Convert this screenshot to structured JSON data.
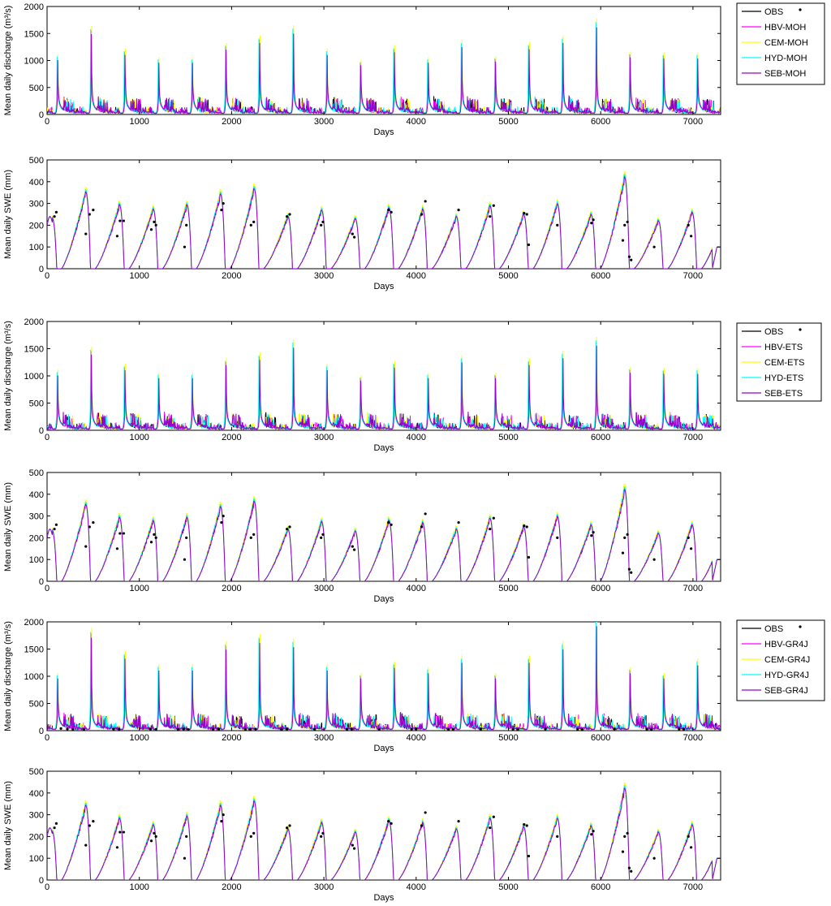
{
  "colors": {
    "OBS": "#000000",
    "HBV": "#ff00ff",
    "CEM": "#ffff00",
    "HYD": "#00ffff",
    "SEB": "#9900cc"
  },
  "chart_data": [
    {
      "type": "line",
      "xlabel": "Days",
      "ylabel": "Mean daily discharge (m³/s)",
      "xlim": [
        0,
        7300
      ],
      "ylim": [
        0,
        2000
      ],
      "xticks": [
        0,
        1000,
        2000,
        3000,
        4000,
        5000,
        6000,
        7000
      ],
      "yticks": [
        0,
        500,
        1000,
        1500,
        2000
      ],
      "legend_position": "outside-top-right",
      "series": [
        {
          "name": "OBS",
          "color": "#000000",
          "kind": "line-obs"
        },
        {
          "name": "HBV-MOH",
          "color": "#ff00ff",
          "kind": "line"
        },
        {
          "name": "CEM-MOH",
          "color": "#ffff00",
          "kind": "line"
        },
        {
          "name": "HYD-MOH",
          "color": "#00ffff",
          "kind": "line"
        },
        {
          "name": "SEB-MOH",
          "color": "#9900cc",
          "kind": "line"
        }
      ],
      "peaks": [
        1050,
        1550,
        1150,
        1000,
        1000,
        1250,
        1380,
        1560,
        1150,
        950,
        1200,
        1000,
        1300,
        1020,
        1260,
        1380,
        1680,
        1100,
        1080,
        1080
      ],
      "spike_peaks": [],
      "obs_points": []
    },
    {
      "type": "line",
      "xlabel": "Days",
      "ylabel": "Mean daily SWE (mm)",
      "xlim": [
        0,
        7300
      ],
      "ylim": [
        0,
        500
      ],
      "xticks": [
        0,
        1000,
        2000,
        3000,
        4000,
        5000,
        6000,
        7000
      ],
      "yticks": [
        0,
        100,
        200,
        300,
        400,
        500
      ],
      "series": [
        {
          "name": "HBV",
          "color": "#ff00ff"
        },
        {
          "name": "CEM",
          "color": "#ffff00"
        },
        {
          "name": "HYD",
          "color": "#00ffff"
        },
        {
          "name": "SEB",
          "color": "#9900cc"
        }
      ],
      "swe_peaks": [
        240,
        360,
        300,
        280,
        300,
        350,
        375,
        245,
        275,
        235,
        285,
        280,
        245,
        295,
        255,
        305,
        255,
        430,
        225,
        265
      ],
      "obs_points": [
        [
          80,
          240
        ],
        [
          100,
          260
        ],
        [
          420,
          160
        ],
        [
          460,
          250
        ],
        [
          500,
          270
        ],
        [
          760,
          150
        ],
        [
          790,
          220
        ],
        [
          830,
          220
        ],
        [
          1130,
          180
        ],
        [
          1160,
          215
        ],
        [
          1180,
          200
        ],
        [
          1490,
          100
        ],
        [
          1510,
          200
        ],
        [
          1890,
          270
        ],
        [
          1910,
          300
        ],
        [
          2210,
          200
        ],
        [
          2240,
          215
        ],
        [
          2600,
          240
        ],
        [
          2630,
          250
        ],
        [
          2970,
          200
        ],
        [
          2990,
          215
        ],
        [
          3310,
          160
        ],
        [
          3330,
          145
        ],
        [
          3700,
          270
        ],
        [
          3730,
          260
        ],
        [
          4060,
          250
        ],
        [
          4100,
          310
        ],
        [
          4460,
          270
        ],
        [
          4800,
          240
        ],
        [
          4840,
          290
        ],
        [
          5170,
          255
        ],
        [
          5200,
          250
        ],
        [
          5220,
          110
        ],
        [
          5530,
          200
        ],
        [
          5900,
          210
        ],
        [
          5920,
          225
        ],
        [
          6240,
          130
        ],
        [
          6260,
          200
        ],
        [
          6290,
          215
        ],
        [
          6310,
          55
        ],
        [
          6330,
          40
        ],
        [
          6580,
          100
        ],
        [
          6950,
          200
        ],
        [
          6980,
          150
        ]
      ]
    },
    {
      "type": "line",
      "xlabel": "Days",
      "ylabel": "Mean daily discharge (m³/s)",
      "xlim": [
        0,
        7300
      ],
      "ylim": [
        0,
        2000
      ],
      "xticks": [
        0,
        1000,
        2000,
        3000,
        4000,
        5000,
        6000,
        7000
      ],
      "yticks": [
        0,
        500,
        1000,
        1500,
        2000
      ],
      "legend_position": "outside-top-right",
      "series": [
        {
          "name": "OBS",
          "color": "#000000",
          "kind": "line-obs"
        },
        {
          "name": "HBV-ETS",
          "color": "#ff00ff",
          "kind": "line"
        },
        {
          "name": "CEM-ETS",
          "color": "#ffff00",
          "kind": "line"
        },
        {
          "name": "HYD-ETS",
          "color": "#00ffff",
          "kind": "line"
        },
        {
          "name": "SEB-ETS",
          "color": "#9900cc",
          "kind": "line"
        }
      ],
      "peaks": [
        1050,
        1450,
        1150,
        1000,
        1000,
        1250,
        1350,
        1580,
        1150,
        950,
        1200,
        1000,
        1300,
        1000,
        1250,
        1380,
        1620,
        1100,
        1080,
        1080
      ],
      "spike_peaks": [],
      "obs_points": []
    },
    {
      "type": "line",
      "xlabel": "Days",
      "ylabel": "Mean daily SWE (mm)",
      "xlim": [
        0,
        7300
      ],
      "ylim": [
        0,
        500
      ],
      "xticks": [
        0,
        1000,
        2000,
        3000,
        4000,
        5000,
        6000,
        7000
      ],
      "yticks": [
        0,
        100,
        200,
        300,
        400,
        500
      ],
      "series": [
        {
          "name": "HBV",
          "color": "#ff00ff"
        },
        {
          "name": "CEM",
          "color": "#ffff00"
        },
        {
          "name": "HYD",
          "color": "#00ffff"
        },
        {
          "name": "SEB",
          "color": "#9900cc"
        }
      ],
      "swe_peaks": [
        240,
        360,
        300,
        285,
        300,
        350,
        375,
        245,
        280,
        235,
        285,
        275,
        245,
        295,
        255,
        305,
        265,
        430,
        225,
        265
      ],
      "obs_points": [
        [
          80,
          240
        ],
        [
          100,
          260
        ],
        [
          420,
          160
        ],
        [
          460,
          250
        ],
        [
          500,
          270
        ],
        [
          760,
          150
        ],
        [
          790,
          220
        ],
        [
          830,
          220
        ],
        [
          1130,
          180
        ],
        [
          1160,
          215
        ],
        [
          1180,
          200
        ],
        [
          1490,
          100
        ],
        [
          1510,
          200
        ],
        [
          1890,
          270
        ],
        [
          1910,
          300
        ],
        [
          2210,
          200
        ],
        [
          2240,
          215
        ],
        [
          2600,
          240
        ],
        [
          2630,
          250
        ],
        [
          2970,
          200
        ],
        [
          2990,
          215
        ],
        [
          3310,
          160
        ],
        [
          3330,
          145
        ],
        [
          3700,
          270
        ],
        [
          3730,
          260
        ],
        [
          4060,
          250
        ],
        [
          4100,
          310
        ],
        [
          4460,
          270
        ],
        [
          4800,
          240
        ],
        [
          4840,
          290
        ],
        [
          5170,
          255
        ],
        [
          5200,
          250
        ],
        [
          5220,
          110
        ],
        [
          5530,
          200
        ],
        [
          5900,
          210
        ],
        [
          5920,
          225
        ],
        [
          6240,
          130
        ],
        [
          6260,
          200
        ],
        [
          6290,
          215
        ],
        [
          6310,
          55
        ],
        [
          6330,
          40
        ],
        [
          6580,
          100
        ],
        [
          6950,
          200
        ],
        [
          6980,
          150
        ]
      ]
    },
    {
      "type": "line",
      "xlabel": "Days",
      "ylabel": "Mean daily discharge (m³/s)",
      "xlim": [
        0,
        7300
      ],
      "ylim": [
        0,
        2000
      ],
      "xticks": [
        0,
        1000,
        2000,
        3000,
        4000,
        5000,
        6000,
        7000
      ],
      "yticks": [
        0,
        500,
        1000,
        1500,
        2000
      ],
      "legend_position": "outside-top-right",
      "series": [
        {
          "name": "OBS",
          "color": "#000000",
          "kind": "line-obs"
        },
        {
          "name": "HBV-GR4J",
          "color": "#ff00ff",
          "kind": "line"
        },
        {
          "name": "CEM-GR4J",
          "color": "#ffff00",
          "kind": "line"
        },
        {
          "name": "HYD-GR4J",
          "color": "#00ffff",
          "kind": "line"
        },
        {
          "name": "SEB-GR4J",
          "color": "#9900cc",
          "kind": "line"
        }
      ],
      "peaks": [
        1000,
        1780,
        1380,
        1150,
        1150,
        1550,
        1680,
        1600,
        1150,
        1000,
        1200,
        1100,
        1300,
        1000,
        1300,
        1560,
        2000,
        1100,
        1000,
        1250
      ],
      "spike_peaks": [],
      "obs_points": [
        [
          150,
          40
        ],
        [
          220,
          30
        ],
        [
          280,
          25
        ],
        [
          400,
          20
        ],
        [
          720,
          30
        ],
        [
          780,
          25
        ],
        [
          1120,
          30
        ],
        [
          1180,
          25
        ],
        [
          1420,
          20
        ],
        [
          1480,
          30
        ],
        [
          1530,
          20
        ],
        [
          1800,
          25
        ],
        [
          1860,
          30
        ],
        [
          2150,
          25
        ],
        [
          2200,
          20
        ],
        [
          2260,
          30
        ],
        [
          2540,
          25
        ],
        [
          2600,
          30
        ],
        [
          2900,
          20
        ],
        [
          3250,
          25
        ],
        [
          3300,
          30
        ],
        [
          3600,
          20
        ],
        [
          3950,
          25
        ],
        [
          4000,
          30
        ],
        [
          4350,
          20
        ],
        [
          4400,
          25
        ],
        [
          4700,
          30
        ],
        [
          5050,
          25
        ],
        [
          5100,
          20
        ],
        [
          5400,
          30
        ],
        [
          5750,
          25
        ],
        [
          5800,
          20
        ],
        [
          6150,
          30
        ],
        [
          6500,
          25
        ],
        [
          6550,
          20
        ],
        [
          6850,
          30
        ],
        [
          6900,
          25
        ]
      ]
    },
    {
      "type": "line",
      "xlabel": "Days",
      "ylabel": "Mean daily SWE (mm)",
      "xlim": [
        0,
        7300
      ],
      "ylim": [
        0,
        500
      ],
      "xticks": [
        0,
        1000,
        2000,
        3000,
        4000,
        5000,
        6000,
        7000
      ],
      "yticks": [
        0,
        100,
        200,
        300,
        400,
        500
      ],
      "series": [
        {
          "name": "HBV",
          "color": "#ff00ff"
        },
        {
          "name": "CEM",
          "color": "#ffff00"
        },
        {
          "name": "HYD",
          "color": "#00ffff"
        },
        {
          "name": "SEB",
          "color": "#9900cc"
        }
      ],
      "swe_peaks": [
        230,
        350,
        290,
        260,
        300,
        350,
        370,
        240,
        270,
        225,
        280,
        270,
        240,
        290,
        250,
        290,
        255,
        430,
        225,
        260
      ],
      "obs_points": [
        [
          80,
          240
        ],
        [
          100,
          260
        ],
        [
          420,
          160
        ],
        [
          460,
          250
        ],
        [
          500,
          270
        ],
        [
          760,
          150
        ],
        [
          790,
          220
        ],
        [
          830,
          220
        ],
        [
          1130,
          180
        ],
        [
          1160,
          215
        ],
        [
          1180,
          200
        ],
        [
          1490,
          100
        ],
        [
          1510,
          200
        ],
        [
          1890,
          270
        ],
        [
          1910,
          300
        ],
        [
          2210,
          200
        ],
        [
          2240,
          215
        ],
        [
          2600,
          240
        ],
        [
          2630,
          250
        ],
        [
          2970,
          200
        ],
        [
          2990,
          215
        ],
        [
          3310,
          160
        ],
        [
          3330,
          145
        ],
        [
          3700,
          270
        ],
        [
          3730,
          260
        ],
        [
          4060,
          250
        ],
        [
          4100,
          310
        ],
        [
          4460,
          270
        ],
        [
          4800,
          240
        ],
        [
          4840,
          290
        ],
        [
          5170,
          255
        ],
        [
          5200,
          250
        ],
        [
          5220,
          110
        ],
        [
          5530,
          200
        ],
        [
          5900,
          210
        ],
        [
          5920,
          225
        ],
        [
          6240,
          130
        ],
        [
          6260,
          200
        ],
        [
          6290,
          215
        ],
        [
          6310,
          55
        ],
        [
          6330,
          40
        ],
        [
          6580,
          100
        ],
        [
          6950,
          200
        ],
        [
          6980,
          150
        ]
      ]
    }
  ]
}
